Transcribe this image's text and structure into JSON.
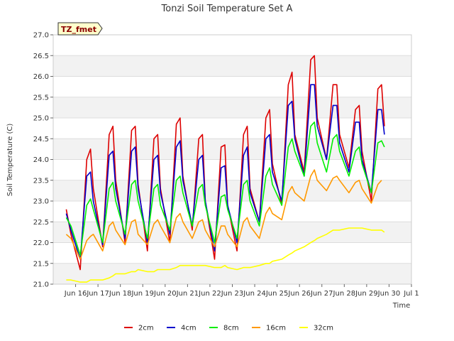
{
  "chart_data": {
    "type": "line",
    "title": "Tonzi Soil Temperature Set A",
    "xlabel": "Time",
    "ylabel": "Soil Temperature (C)",
    "badge": "TZ_fmet",
    "x_ticks": [
      "Jun 16",
      "Jun 17",
      "Jun 18",
      "Jun 19",
      "Jun 20",
      "Jun 21",
      "Jun 22",
      "Jun 23",
      "Jun 24",
      "Jun 25",
      "Jun 26",
      "Jun 27",
      "Jun 28",
      "Jun 29",
      "Jun 30",
      "Jul 1"
    ],
    "xlim": [
      "Jun 15",
      "Jul 1"
    ],
    "ylim": [
      21.0,
      27.0
    ],
    "y_ticks": [
      "21.0",
      "21.5",
      "22.0",
      "22.5",
      "23.0",
      "23.5",
      "24.0",
      "24.5",
      "25.0",
      "25.5",
      "26.0",
      "26.5",
      "27.0"
    ],
    "grid": true,
    "legend_position": "bottom",
    "x": [
      "Jun 15 14:00",
      "Jun 15 19:00",
      "Jun 16 05:00",
      "Jun 16 12:00",
      "Jun 16 16:00",
      "Jun 16 19:00",
      "Jun 17 05:00",
      "Jun 17 12:00",
      "Jun 17 16:00",
      "Jun 17 19:00",
      "Jun 18 05:00",
      "Jun 18 12:00",
      "Jun 18 16:00",
      "Jun 18 19:00",
      "Jun 19 05:00",
      "Jun 19 12:00",
      "Jun 19 16:00",
      "Jun 19 19:00",
      "Jun 20 05:00",
      "Jun 20 12:00",
      "Jun 20 16:00",
      "Jun 20 19:00",
      "Jun 21 05:00",
      "Jun 21 12:00",
      "Jun 21 16:00",
      "Jun 21 19:00",
      "Jun 22 05:00",
      "Jun 22 12:00",
      "Jun 22 16:00",
      "Jun 22 19:00",
      "Jun 23 05:00",
      "Jun 23 12:00",
      "Jun 23 16:00",
      "Jun 23 19:00",
      "Jun 24 05:00",
      "Jun 24 12:00",
      "Jun 24 16:00",
      "Jun 24 19:00",
      "Jun 25 05:00",
      "Jun 25 12:00",
      "Jun 25 16:00",
      "Jun 25 19:00",
      "Jun 26 05:00",
      "Jun 26 12:00",
      "Jun 26 16:00",
      "Jun 26 19:00",
      "Jun 27 05:00",
      "Jun 27 12:00",
      "Jun 27 16:00",
      "Jun 27 19:00",
      "Jun 28 05:00",
      "Jun 28 12:00",
      "Jun 28 16:00",
      "Jun 28 19:00",
      "Jun 29 05:00",
      "Jun 29 12:00",
      "Jun 29 16:00",
      "Jun 29 19:00",
      "Jun 30 05:00",
      "Jun 30 12:00",
      "Jun 30 16:00",
      "Jun 30 19:00"
    ],
    "series": [
      {
        "name": "2cm",
        "color": "#dd0000",
        "values": [
          22.8,
          22.2,
          21.35,
          24.0,
          24.25,
          23.3,
          21.9,
          24.6,
          24.8,
          23.5,
          22.0,
          24.7,
          24.8,
          23.4,
          21.8,
          24.5,
          24.6,
          23.3,
          22.0,
          24.85,
          25.0,
          23.6,
          22.3,
          24.5,
          24.6,
          23.0,
          21.6,
          24.3,
          24.35,
          22.9,
          21.8,
          24.6,
          24.8,
          23.3,
          22.5,
          25.0,
          25.2,
          23.9,
          22.9,
          25.8,
          26.1,
          24.6,
          23.7,
          26.4,
          26.5,
          25.0,
          24.0,
          25.8,
          25.8,
          24.6,
          23.8,
          25.2,
          25.3,
          24.2,
          23.0,
          25.7,
          25.8,
          24.8,
          null,
          null,
          null,
          null
        ]
      },
      {
        "name": "4cm",
        "color": "#0000cc",
        "values": [
          22.7,
          22.3,
          21.6,
          23.6,
          23.7,
          23.0,
          21.95,
          24.1,
          24.2,
          23.3,
          22.1,
          24.2,
          24.3,
          23.3,
          22.0,
          24.0,
          24.1,
          23.2,
          22.2,
          24.3,
          24.45,
          23.5,
          22.4,
          24.0,
          24.1,
          23.0,
          21.8,
          23.8,
          23.85,
          22.9,
          22.0,
          24.1,
          24.3,
          23.2,
          22.5,
          24.5,
          24.6,
          23.7,
          23.0,
          25.3,
          25.4,
          24.5,
          23.6,
          25.8,
          25.8,
          24.8,
          24.0,
          25.3,
          25.3,
          24.4,
          23.7,
          24.9,
          24.9,
          24.0,
          23.2,
          25.2,
          25.2,
          24.6,
          null,
          null,
          null,
          null
        ]
      },
      {
        "name": "8cm",
        "color": "#00ee00",
        "values": [
          22.6,
          22.4,
          21.7,
          22.9,
          23.05,
          22.8,
          22.0,
          23.3,
          23.45,
          23.0,
          22.2,
          23.4,
          23.5,
          23.0,
          22.1,
          23.3,
          23.4,
          22.9,
          22.3,
          23.5,
          23.6,
          23.2,
          22.4,
          23.3,
          23.4,
          22.9,
          22.0,
          23.1,
          23.15,
          22.8,
          22.1,
          23.4,
          23.5,
          23.0,
          22.4,
          23.6,
          23.8,
          23.4,
          22.9,
          24.3,
          24.5,
          24.2,
          23.6,
          24.8,
          24.9,
          24.4,
          23.7,
          24.5,
          24.6,
          24.2,
          23.6,
          24.2,
          24.3,
          23.9,
          23.2,
          24.4,
          24.45,
          24.3,
          null,
          null,
          null,
          null
        ]
      },
      {
        "name": "16cm",
        "color": "#ff9900",
        "values": [
          22.2,
          22.1,
          21.6,
          22.05,
          22.15,
          22.2,
          21.8,
          22.4,
          22.5,
          22.3,
          21.95,
          22.5,
          22.55,
          22.2,
          21.95,
          22.45,
          22.55,
          22.4,
          22.0,
          22.6,
          22.7,
          22.5,
          22.1,
          22.5,
          22.55,
          22.3,
          21.9,
          22.4,
          22.4,
          22.2,
          21.9,
          22.5,
          22.6,
          22.4,
          22.1,
          22.7,
          22.85,
          22.7,
          22.55,
          23.2,
          23.35,
          23.2,
          23.0,
          23.6,
          23.75,
          23.5,
          23.25,
          23.55,
          23.6,
          23.5,
          23.2,
          23.45,
          23.5,
          23.3,
          22.95,
          23.4,
          23.5,
          null,
          null,
          null,
          null,
          null
        ]
      },
      {
        "name": "32cm",
        "color": "#ffff00",
        "values": [
          21.1,
          21.1,
          21.05,
          21.05,
          21.1,
          21.1,
          21.1,
          21.15,
          21.2,
          21.25,
          21.25,
          21.3,
          21.3,
          21.35,
          21.3,
          21.3,
          21.35,
          21.35,
          21.35,
          21.4,
          21.45,
          21.45,
          21.45,
          21.45,
          21.45,
          21.45,
          21.4,
          21.4,
          21.45,
          21.4,
          21.35,
          21.4,
          21.4,
          21.4,
          21.45,
          21.5,
          21.5,
          21.55,
          21.6,
          21.7,
          21.75,
          21.8,
          21.9,
          22.0,
          22.05,
          22.1,
          22.2,
          22.3,
          22.3,
          22.3,
          22.35,
          22.35,
          22.35,
          22.35,
          22.3,
          22.3,
          22.3,
          22.25,
          null,
          null,
          null,
          null
        ]
      }
    ]
  }
}
